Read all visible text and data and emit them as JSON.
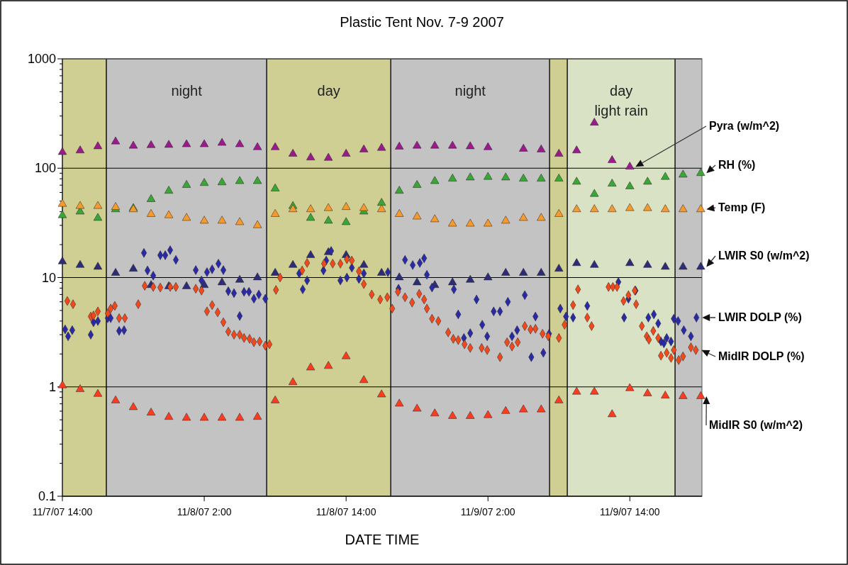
{
  "chart_data": {
    "type": "scatter",
    "title": "Plastic Tent Nov. 7-9 2007",
    "xlabel": "DATE TIME",
    "log": "y",
    "grid": "y",
    "xlim": [
      "2007-11-07T14:00",
      "2007-11-09T20:06"
    ],
    "xticks": [
      {
        "value": "2007-11-07T14:00",
        "label": "11/7/07 14:00"
      },
      {
        "value": "2007-11-08T02:00",
        "label": "11/8/07 2:00"
      },
      {
        "value": "2007-11-08T14:00",
        "label": "11/8/07 14:00"
      },
      {
        "value": "2007-11-09T02:00",
        "label": "11/9/07 2:00"
      },
      {
        "value": "2007-11-09T14:00",
        "label": "11/9/07 14:00"
      }
    ],
    "ylim": [
      0.1,
      1000
    ],
    "yticks": [
      0.1,
      1,
      10,
      100,
      1000
    ],
    "x": [
      "2007-11-07T14:00",
      "2007-11-07T15:30",
      "2007-11-07T17:00",
      "2007-11-07T18:30",
      "2007-11-07T20:00",
      "2007-11-07T21:30",
      "2007-11-07T23:00",
      "2007-11-08T00:30",
      "2007-11-08T02:00",
      "2007-11-08T03:30",
      "2007-11-08T05:00",
      "2007-11-08T06:30",
      "2007-11-08T08:00",
      "2007-11-08T09:30",
      "2007-11-08T11:00",
      "2007-11-08T12:30",
      "2007-11-08T14:00",
      "2007-11-08T15:30",
      "2007-11-08T17:00",
      "2007-11-08T18:30",
      "2007-11-08T20:00",
      "2007-11-08T21:30",
      "2007-11-08T23:00",
      "2007-11-09T00:30",
      "2007-11-09T02:00",
      "2007-11-09T03:30",
      "2007-11-09T05:00",
      "2007-11-09T06:30",
      "2007-11-09T08:00",
      "2007-11-09T09:30",
      "2007-11-09T11:00",
      "2007-11-09T12:30",
      "2007-11-09T14:00",
      "2007-11-09T15:30",
      "2007-11-09T17:00",
      "2007-11-09T18:30",
      "2007-11-09T20:00"
    ],
    "bands": [
      {
        "axis": "x",
        "from": "2007-11-07T14:00",
        "to": "2007-11-07T17:43",
        "label": null,
        "color": "#cfcf94"
      },
      {
        "axis": "x",
        "from": "2007-11-07T17:43",
        "to": "2007-11-08T07:17",
        "label": "night",
        "color": "#c3c3c3"
      },
      {
        "axis": "x",
        "from": "2007-11-08T07:17",
        "to": "2007-11-08T17:47",
        "label": "day",
        "color": "#cfcf94"
      },
      {
        "axis": "x",
        "from": "2007-11-08T17:47",
        "to": "2007-11-09T07:13",
        "label": "night",
        "color": "#c3c3c3"
      },
      {
        "axis": "x",
        "from": "2007-11-09T07:13",
        "to": "2007-11-09T08:43",
        "label": null,
        "color": "#cfcf94"
      },
      {
        "axis": "x",
        "from": "2007-11-09T08:43",
        "to": "2007-11-09T17:50",
        "label": "day\nlight rain",
        "color": "#dae2c6"
      },
      {
        "axis": "x",
        "from": "2007-11-09T17:50",
        "to": "2007-11-09T20:06",
        "label": null,
        "color": "#c3c3c3"
      }
    ],
    "series": [
      {
        "name": "Pyra (w/m^2)",
        "color": "#9b1a8c",
        "marker": "triangle",
        "values": [
          140,
          145,
          158,
          175,
          160,
          162,
          163,
          165,
          165,
          170,
          165,
          155,
          155,
          135,
          125,
          124,
          135,
          148,
          153,
          157,
          160,
          160,
          160,
          158,
          155,
          null,
          150,
          148,
          135,
          145,
          260,
          118,
          103,
          null,
          null,
          null,
          null
        ]
      },
      {
        "name": "RH (%)",
        "color": "#3aa635",
        "marker": "triangle",
        "values": [
          37,
          40,
          35,
          42,
          43,
          52,
          62,
          70,
          73,
          74,
          76,
          76,
          65,
          45,
          35,
          33,
          32,
          40,
          48,
          62,
          70,
          76,
          80,
          82,
          83,
          82,
          80,
          80,
          80,
          75,
          58,
          72,
          68,
          75,
          83,
          87,
          90
        ]
      },
      {
        "name": "Temp (F)",
        "color": "#f79a2e",
        "marker": "triangle",
        "values": [
          47,
          45,
          45,
          44,
          42,
          38,
          37,
          35,
          33,
          33,
          32,
          30,
          38,
          42,
          42,
          43,
          44,
          43,
          42,
          38,
          36,
          34,
          31,
          31,
          31,
          33,
          35,
          35,
          38,
          42,
          42,
          42,
          43,
          43,
          42,
          42,
          42
        ]
      },
      {
        "name": "LWIR S0 (w/m^2)",
        "color": "#2e2c78",
        "marker": "triangle",
        "values": [
          14,
          13,
          12.5,
          11,
          12,
          8.5,
          8.3,
          8.3,
          8.5,
          9,
          9.5,
          10,
          11,
          13,
          16,
          17,
          16,
          13,
          11,
          10,
          9,
          8.5,
          9,
          9.5,
          10,
          11,
          11,
          11,
          12,
          13.5,
          13,
          null,
          13.5,
          13,
          12.5,
          12.5,
          12.5
        ]
      },
      {
        "name": "LWIR DOLP (%)",
        "color": "#2a2aa8",
        "marker": "diamond",
        "x": [
          "2007-11-07T14:14",
          "2007-11-07T14:29",
          "2007-11-07T14:50",
          "2007-11-07T16:24",
          "2007-11-07T16:38",
          "2007-11-07T17:00",
          "2007-11-07T17:50",
          "2007-11-07T18:05",
          "2007-11-07T18:48",
          "2007-11-07T19:13",
          "2007-11-07T20:54",
          "2007-11-07T21:12",
          "2007-11-07T21:41",
          "2007-11-07T22:17",
          "2007-11-07T22:42",
          "2007-11-07T23:07",
          "2007-11-07T23:36",
          "2007-11-08T01:17",
          "2007-11-08T01:46",
          "2007-11-08T02:14",
          "2007-11-08T02:40",
          "2007-11-08T03:12",
          "2007-11-08T03:37",
          "2007-11-08T04:02",
          "2007-11-08T04:31",
          "2007-11-08T05:00",
          "2007-11-08T05:22",
          "2007-11-08T05:47",
          "2007-11-08T06:12",
          "2007-11-08T06:37",
          "2007-11-08T07:10",
          "2007-11-08T10:02",
          "2007-11-08T10:20",
          "2007-11-08T10:42",
          "2007-11-08T12:05",
          "2007-11-08T12:19",
          "2007-11-08T12:44",
          "2007-11-08T13:31",
          "2007-11-08T14:04",
          "2007-11-08T14:29",
          "2007-11-08T15:05",
          "2007-11-08T15:30",
          "2007-11-08T17:32",
          "2007-11-08T18:26",
          "2007-11-08T18:59",
          "2007-11-08T19:38",
          "2007-11-08T20:14",
          "2007-11-08T20:36",
          "2007-11-08T20:50",
          "2007-11-08T21:16",
          "2007-11-08T23:07",
          "2007-11-08T23:29",
          "2007-11-08T23:58",
          "2007-11-09T00:30",
          "2007-11-09T01:02",
          "2007-11-09T01:31",
          "2007-11-09T01:56",
          "2007-11-09T02:29",
          "2007-11-09T03:01",
          "2007-11-09T03:41",
          "2007-11-09T04:02",
          "2007-11-09T04:28",
          "2007-11-09T05:07",
          "2007-11-09T05:40",
          "2007-11-09T06:01",
          "2007-11-09T06:41",
          "2007-11-09T07:10",
          "2007-11-09T08:07",
          "2007-11-09T08:36",
          "2007-11-09T09:12",
          "2007-11-09T10:24",
          "2007-11-09T13:02",
          "2007-11-09T13:31",
          "2007-11-09T13:53",
          "2007-11-09T14:29",
          "2007-11-09T15:34",
          "2007-11-09T16:02",
          "2007-11-09T16:24",
          "2007-11-09T16:38",
          "2007-11-09T16:53",
          "2007-11-09T17:07",
          "2007-11-09T17:29",
          "2007-11-09T17:43",
          "2007-11-09T18:05",
          "2007-11-09T18:34",
          "2007-11-09T19:10",
          "2007-11-09T19:38"
        ],
        "values": [
          3.35,
          2.9,
          3.3,
          3,
          3.9,
          4,
          4.25,
          4.25,
          3.25,
          3.3,
          16.8,
          11.6,
          10.4,
          16,
          16,
          17.8,
          14.5,
          11.7,
          9.4,
          11.2,
          11.9,
          13.4,
          11.7,
          7.5,
          7.2,
          4.45,
          7.4,
          7.4,
          6.4,
          7,
          6.4,
          10.9,
          7.8,
          9.4,
          11.6,
          14.3,
          17.5,
          9.4,
          10,
          12.3,
          9.7,
          10.9,
          11.2,
          7.9,
          14.5,
          13,
          13.6,
          15,
          10.6,
          8.1,
          7.8,
          4.6,
          2.8,
          3.1,
          6.3,
          3.7,
          2.9,
          4.9,
          4.9,
          6,
          2.9,
          3.3,
          6.9,
          1.87,
          4.4,
          2.05,
          3.06,
          5.2,
          4.4,
          4.3,
          5.5,
          9.1,
          4.3,
          6.4,
          7.6,
          4.3,
          4.6,
          3.8,
          2.6,
          2.5,
          2.8,
          2.6,
          4.2,
          4,
          3.3,
          2.9,
          4.3
        ]
      },
      {
        "name": "MidIR DOLP (%)",
        "color": "#f2481c",
        "marker": "diamond",
        "x": [
          "2007-11-07T14:25",
          "2007-11-07T14:54",
          "2007-11-07T16:24",
          "2007-11-07T16:38",
          "2007-11-07T17:00",
          "2007-11-07T17:50",
          "2007-11-07T18:05",
          "2007-11-07T18:26",
          "2007-11-07T18:48",
          "2007-11-07T19:17",
          "2007-11-07T20:25",
          "2007-11-07T20:58",
          "2007-11-07T21:41",
          "2007-11-07T22:17",
          "2007-11-07T23:07",
          "2007-11-07T23:36",
          "2007-11-08T01:17",
          "2007-11-08T01:46",
          "2007-11-08T02:14",
          "2007-11-08T02:40",
          "2007-11-08T03:08",
          "2007-11-08T03:37",
          "2007-11-08T04:02",
          "2007-11-08T04:31",
          "2007-11-08T05:00",
          "2007-11-08T05:22",
          "2007-11-08T05:50",
          "2007-11-08T06:12",
          "2007-11-08T06:41",
          "2007-11-08T07:10",
          "2007-11-08T07:31",
          "2007-11-08T08:04",
          "2007-11-08T08:25",
          "2007-11-08T10:17",
          "2007-11-08T10:42",
          "2007-11-08T12:08",
          "2007-11-08T12:52",
          "2007-11-08T13:31",
          "2007-11-08T14:04",
          "2007-11-08T14:29",
          "2007-11-08T15:05",
          "2007-11-08T15:30",
          "2007-11-08T16:10",
          "2007-11-08T16:53",
          "2007-11-08T17:29",
          "2007-11-08T17:54",
          "2007-11-08T18:23",
          "2007-11-08T18:59",
          "2007-11-08T19:35",
          "2007-11-08T20:11",
          "2007-11-08T20:36",
          "2007-11-08T20:50",
          "2007-11-08T21:16",
          "2007-11-08T21:48",
          "2007-11-08T22:38",
          "2007-11-08T23:04",
          "2007-11-08T23:29",
          "2007-11-09T00:01",
          "2007-11-09T00:30",
          "2007-11-09T01:28",
          "2007-11-09T01:56",
          "2007-11-09T03:01",
          "2007-11-09T03:37",
          "2007-11-09T04:02",
          "2007-11-09T04:31",
          "2007-11-09T05:07",
          "2007-11-09T05:36",
          "2007-11-09T06:01",
          "2007-11-09T06:37",
          "2007-11-09T07:06",
          "2007-11-09T08:00",
          "2007-11-09T08:29",
          "2007-11-09T09:12",
          "2007-11-09T09:37",
          "2007-11-09T10:24",
          "2007-11-09T10:46",
          "2007-11-09T12:12",
          "2007-11-09T12:34",
          "2007-11-09T12:55",
          "2007-11-09T13:28",
          "2007-11-09T13:53",
          "2007-11-09T14:25",
          "2007-11-09T14:32",
          "2007-11-09T15:01",
          "2007-11-09T15:26",
          "2007-11-09T15:37",
          "2007-11-09T15:59",
          "2007-11-09T16:24",
          "2007-11-09T16:38",
          "2007-11-09T17:07",
          "2007-11-09T17:29",
          "2007-11-09T17:43",
          "2007-11-09T18:08",
          "2007-11-09T18:30",
          "2007-11-09T19:10",
          "2007-11-09T19:35"
        ],
        "values": [
          6.1,
          5.7,
          4.4,
          4.5,
          4.9,
          4.7,
          5.2,
          5.5,
          4.25,
          4.25,
          5.7,
          8.4,
          8.2,
          8.1,
          8.2,
          8.2,
          7.9,
          7.6,
          4.9,
          5.6,
          4.8,
          3.9,
          3.2,
          3,
          3,
          2.8,
          2.75,
          2.56,
          2.6,
          2.38,
          2.45,
          7.7,
          10,
          11.6,
          13.6,
          13.4,
          13.4,
          13.4,
          14.7,
          14.3,
          11.4,
          8.7,
          7,
          6.3,
          6.6,
          5.2,
          7.4,
          6.6,
          5.9,
          7.1,
          6.3,
          5.2,
          4.2,
          4,
          3.15,
          2.75,
          2.68,
          2.45,
          2.27,
          2.27,
          2.17,
          1.87,
          2.56,
          2.34,
          2.56,
          3.6,
          3.35,
          3.4,
          3.06,
          2.9,
          2.8,
          3.7,
          5.6,
          7.8,
          4.3,
          3.6,
          8.2,
          8.2,
          8.2,
          6.1,
          6.9,
          7.6,
          5.7,
          3.6,
          2.9,
          2.7,
          3.25,
          2.8,
          1.93,
          2.05,
          1.84,
          2.17,
          1.76,
          1.9,
          2.3,
          2.17
        ]
      },
      {
        "name": "MidIR S0 (w/m^2)",
        "color": "#ff3b1f",
        "marker": "triangle",
        "values": [
          1.03,
          0.95,
          0.86,
          0.75,
          0.65,
          0.58,
          0.53,
          0.52,
          0.52,
          0.52,
          0.52,
          0.53,
          0.75,
          1.1,
          1.5,
          1.55,
          1.9,
          1.15,
          0.85,
          0.7,
          0.63,
          0.57,
          0.54,
          0.54,
          0.55,
          0.6,
          0.62,
          0.62,
          0.75,
          0.9,
          0.9,
          0.56,
          0.97,
          0.87,
          0.83,
          0.82,
          0.82
        ]
      }
    ]
  }
}
